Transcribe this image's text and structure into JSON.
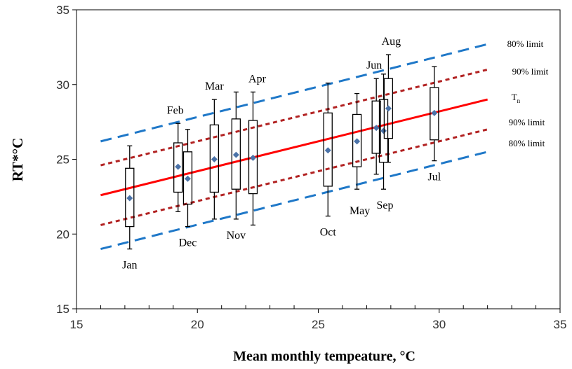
{
  "chart_data": {
    "type": "box",
    "xlabel": "Mean monthly tempeature, °C",
    "ylabel": "RT*°C",
    "xlim": [
      15,
      35
    ],
    "ylim": [
      15,
      35
    ],
    "x_ticks": [
      "15",
      "20",
      "25",
      "30",
      "35"
    ],
    "y_ticks": [
      "15",
      "20",
      "25",
      "30",
      "35"
    ],
    "grid": false,
    "colors": {
      "mean_marker": "#4a72a8",
      "neutral_line": "#ff0000",
      "limit_90": "#b22222",
      "limit_80": "#1f78c8",
      "box": "#000000"
    },
    "reference_lines": [
      {
        "id": "upper-80",
        "label": "80% limit",
        "x": [
          16,
          32
        ],
        "y": [
          26.2,
          32.7
        ],
        "style": "long-dash",
        "color": "#1f78c8"
      },
      {
        "id": "upper-90",
        "label": "90% limit",
        "x": [
          16,
          32
        ],
        "y": [
          24.6,
          31.0
        ],
        "style": "short-dash",
        "color": "#b22222"
      },
      {
        "id": "neutral",
        "label": "Tn",
        "x": [
          16,
          32
        ],
        "y": [
          22.6,
          29.0
        ],
        "style": "solid",
        "color": "#ff0000"
      },
      {
        "id": "lower-90",
        "label": "90% limit",
        "x": [
          16,
          32
        ],
        "y": [
          20.6,
          27.0
        ],
        "style": "short-dash",
        "color": "#b22222"
      },
      {
        "id": "lower-80",
        "label": "80% limit",
        "x": [
          16,
          32
        ],
        "y": [
          19.0,
          25.5
        ],
        "style": "long-dash",
        "color": "#1f78c8"
      }
    ],
    "months": [
      {
        "label": "Jan",
        "x": 17.2,
        "mean": 22.4,
        "q1": 20.5,
        "q3": 24.4,
        "min": 19.0,
        "max": 25.9
      },
      {
        "label": "Feb",
        "x": 19.2,
        "mean": 24.5,
        "q1": 22.8,
        "q3": 26.1,
        "min": 21.5,
        "max": 27.4
      },
      {
        "label": "Dec",
        "x": 19.6,
        "mean": 23.7,
        "q1": 22.0,
        "q3": 25.5,
        "min": 20.5,
        "max": 27.0
      },
      {
        "label": "Mar",
        "x": 20.7,
        "mean": 25.0,
        "q1": 22.8,
        "q3": 27.3,
        "min": 21.0,
        "max": 29.0
      },
      {
        "label": "Nov",
        "x": 21.6,
        "mean": 25.3,
        "q1": 23.0,
        "q3": 27.7,
        "min": 21.0,
        "max": 29.5
      },
      {
        "label": "Apr",
        "x": 22.3,
        "mean": 25.1,
        "q1": 22.7,
        "q3": 27.6,
        "min": 20.6,
        "max": 29.5
      },
      {
        "label": "Oct",
        "x": 25.4,
        "mean": 25.6,
        "q1": 23.2,
        "q3": 28.1,
        "min": 21.2,
        "max": 30.1
      },
      {
        "label": "May",
        "x": 26.6,
        "mean": 26.2,
        "q1": 24.5,
        "q3": 28.0,
        "min": 23.0,
        "max": 29.4
      },
      {
        "label": "Jun",
        "x": 27.4,
        "mean": 27.1,
        "q1": 25.4,
        "q3": 28.9,
        "min": 24.0,
        "max": 30.4
      },
      {
        "label": "Sep",
        "x": 27.7,
        "mean": 26.9,
        "q1": 24.8,
        "q3": 29.0,
        "min": 23.0,
        "max": 30.7
      },
      {
        "label": "Aug",
        "x": 27.9,
        "mean": 28.4,
        "q1": 26.4,
        "q3": 30.4,
        "min": 24.8,
        "max": 32.0
      },
      {
        "label": "Jul",
        "x": 29.8,
        "mean": 28.1,
        "q1": 26.3,
        "q3": 29.8,
        "min": 24.9,
        "max": 31.2
      }
    ]
  }
}
